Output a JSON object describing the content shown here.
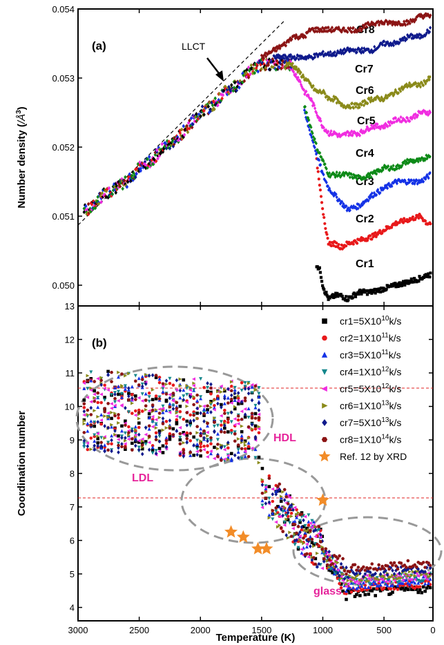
{
  "chart_data": [
    {
      "panel": "(a)",
      "type": "scatter",
      "xlabel": "",
      "ylabel": "Number density ( /Å³)",
      "xlim": [
        3000,
        100
      ],
      "ylim": [
        0.0497,
        0.054
      ],
      "yticks": [
        "0.050",
        "0.051",
        "0.052",
        "0.053",
        "0.054"
      ],
      "annotation": "LLCT",
      "series": [
        {
          "name": "Cr1",
          "color": "#000000",
          "x": [
            1050,
            1020,
            1000,
            980,
            950,
            900,
            850,
            800,
            750,
            700,
            600,
            500,
            400,
            300,
            200,
            150,
            120
          ],
          "y": [
            0.0503,
            0.0502,
            0.05,
            0.0499,
            0.0498,
            0.04985,
            0.04985,
            0.0498,
            0.04985,
            0.0499,
            0.0499,
            0.04995,
            0.05,
            0.05005,
            0.0501,
            0.05015,
            0.05015
          ]
        },
        {
          "name": "Cr2",
          "color": "#e8191b",
          "x": [
            1050,
            1020,
            1000,
            980,
            950,
            900,
            850,
            800,
            700,
            600,
            500,
            400,
            300,
            200,
            150,
            120
          ],
          "y": [
            0.0518,
            0.0514,
            0.0511,
            0.0508,
            0.0506,
            0.0506,
            0.05055,
            0.0506,
            0.05065,
            0.0507,
            0.0508,
            0.0509,
            0.05095,
            0.051,
            0.0509,
            0.0509
          ]
        },
        {
          "name": "Cr3",
          "color": "#1432e6",
          "x": [
            1150,
            1100,
            1050,
            1000,
            950,
            900,
            850,
            800,
            700,
            600,
            500,
            400,
            300,
            200,
            120
          ],
          "y": [
            0.0525,
            0.0522,
            0.0519,
            0.0516,
            0.0514,
            0.0513,
            0.0512,
            0.0511,
            0.05115,
            0.0513,
            0.0514,
            0.0515,
            0.0515,
            0.0515,
            0.0516
          ]
        },
        {
          "name": "Cr4",
          "color": "#0d8a17",
          "x": [
            1150,
            1100,
            1050,
            1000,
            950,
            900,
            850,
            800,
            700,
            600,
            500,
            400,
            300,
            200,
            120
          ],
          "y": [
            0.0526,
            0.0523,
            0.052,
            0.0518,
            0.0516,
            0.0516,
            0.0516,
            0.0516,
            0.05155,
            0.0516,
            0.0517,
            0.0517,
            0.0518,
            0.0518,
            0.0519
          ]
        },
        {
          "name": "Cr5",
          "color": "#f02ce0",
          "x": [
            1250,
            1200,
            1150,
            1100,
            1050,
            1000,
            950,
            900,
            850,
            800,
            700,
            600,
            500,
            400,
            300,
            200,
            120
          ],
          "y": [
            0.0531,
            0.053,
            0.0528,
            0.0527,
            0.0525,
            0.0523,
            0.0522,
            0.0522,
            0.05215,
            0.0522,
            0.0522,
            0.0523,
            0.0523,
            0.0524,
            0.0524,
            0.0525,
            0.0525
          ]
        },
        {
          "name": "Cr6",
          "color": "#8a8a1a",
          "x": [
            1300,
            1250,
            1200,
            1150,
            1100,
            1050,
            1000,
            950,
            900,
            850,
            800,
            700,
            600,
            500,
            400,
            300,
            200,
            120
          ],
          "y": [
            0.0532,
            0.0532,
            0.0531,
            0.053,
            0.0529,
            0.0528,
            0.0528,
            0.0527,
            0.0527,
            0.0526,
            0.0526,
            0.0526,
            0.0527,
            0.0527,
            0.0528,
            0.0529,
            0.0529,
            0.053
          ]
        },
        {
          "name": "Cr7",
          "color": "#0f1a8c",
          "x": [
            1400,
            1300,
            1200,
            1100,
            1000,
            900,
            800,
            700,
            600,
            500,
            400,
            300,
            200,
            120
          ],
          "y": [
            0.0533,
            0.0533,
            0.0533,
            0.0533,
            0.05335,
            0.05335,
            0.0534,
            0.0534,
            0.0534,
            0.0535,
            0.0535,
            0.0536,
            0.0536,
            0.0537
          ]
        },
        {
          "name": "Cr8",
          "color": "#8b1414",
          "x": [
            1500,
            1400,
            1300,
            1250,
            1200,
            1150,
            1100,
            1000,
            900,
            800,
            700,
            600,
            500,
            400,
            300,
            200,
            120
          ],
          "y": [
            0.0533,
            0.0534,
            0.0535,
            0.0536,
            0.0536,
            0.0536,
            0.0537,
            0.0537,
            0.0537,
            0.0537,
            0.0537,
            0.0538,
            0.0538,
            0.0538,
            0.0538,
            0.0539,
            0.0539
          ]
        },
        {
          "name": "shared",
          "color": "#555555",
          "x": [
            2950,
            2900,
            2850,
            2800,
            2700,
            2600,
            2500,
            2400,
            2300,
            2200,
            2100,
            2000,
            1900,
            1800,
            1700,
            1600,
            1500,
            1400,
            1300,
            1250
          ],
          "y": [
            0.0511,
            0.0511,
            0.0512,
            0.0513,
            0.0514,
            0.0515,
            0.0517,
            0.0518,
            0.052,
            0.0521,
            0.0523,
            0.0525,
            0.0526,
            0.0528,
            0.0529,
            0.0531,
            0.0532,
            0.0532,
            0.0532,
            0.0532
          ]
        }
      ]
    },
    {
      "panel": "(b)",
      "type": "scatter",
      "xlabel": "Temperature (K)",
      "ylabel": "Coordination number",
      "xlim": [
        3000,
        100
      ],
      "ylim": [
        3.6,
        13
      ],
      "xticks": [
        "3000",
        "2500",
        "2000",
        "1500",
        "1000",
        "500",
        "0"
      ],
      "yticks": [
        "4",
        "5",
        "6",
        "7",
        "8",
        "9",
        "10",
        "11",
        "12",
        "13"
      ],
      "region_labels": [
        "HDL",
        "LDL",
        "glass"
      ],
      "series": [
        {
          "name": "cr1=5X10^10k/s",
          "color": "#000000",
          "marker": "square"
        },
        {
          "name": "cr2=1X10^11k/s",
          "color": "#e8191b",
          "marker": "circle"
        },
        {
          "name": "cr3=5X10^11k/s",
          "color": "#1432e6",
          "marker": "triangle-up"
        },
        {
          "name": "cr4=1X10^12k/s",
          "color": "#13878c",
          "marker": "triangle-down"
        },
        {
          "name": "cr5=5X10^12k/s",
          "color": "#f02ce0",
          "marker": "triangle-left"
        },
        {
          "name": "cr6=1X10^13k/s",
          "color": "#8a8a1a",
          "marker": "triangle-right"
        },
        {
          "name": "cr7=5X10^13k/s",
          "color": "#0f1a8c",
          "marker": "diamond"
        },
        {
          "name": "cr8=1X10^14k/s",
          "color": "#8b1414",
          "marker": "hexagon"
        }
      ],
      "reference": {
        "name": "Ref. 12 by XRD",
        "color": "#f28c28",
        "marker": "star",
        "x": [
          1000,
          1750,
          1650,
          1530,
          1460
        ],
        "y": [
          7.2,
          6.25,
          6.1,
          5.75,
          5.75
        ]
      }
    }
  ],
  "legend": {
    "entries": [
      {
        "prefix": "cr1=5X10",
        "exp": "10",
        "suffix": "k/s",
        "color": "#000000",
        "marker": "square"
      },
      {
        "prefix": "cr2=1X10",
        "exp": "11",
        "suffix": "k/s",
        "color": "#e8191b",
        "marker": "circle"
      },
      {
        "prefix": "cr3=5X10",
        "exp": "11",
        "suffix": "k/s",
        "color": "#1432e6",
        "marker": "triangle-up"
      },
      {
        "prefix": "cr4=1X10",
        "exp": "12",
        "suffix": "k/s",
        "color": "#13878c",
        "marker": "triangle-down"
      },
      {
        "prefix": "cr5=5X10",
        "exp": "12",
        "suffix": "k/s",
        "color": "#f02ce0",
        "marker": "triangle-left"
      },
      {
        "prefix": "cr6=1X10",
        "exp": "13",
        "suffix": "k/s",
        "color": "#8a8a1a",
        "marker": "triangle-right"
      },
      {
        "prefix": "cr7=5X10",
        "exp": "13",
        "suffix": "k/s",
        "color": "#0f1a8c",
        "marker": "diamond"
      },
      {
        "prefix": "cr8=1X10",
        "exp": "14",
        "suffix": "k/s",
        "color": "#8b1414",
        "marker": "hexagon"
      }
    ],
    "ref_label": "Ref. 12 by XRD"
  },
  "labels": {
    "panel_a": "(a)",
    "panel_b": "(b)",
    "llct": "LLCT",
    "ylabel_a_main": "Number density (",
    "ylabel_a_unit": "/Å",
    "ylabel_a_exp": "3",
    "ylabel_a_close": ")",
    "ylabel_b": "Coordination number",
    "xlabel": "Temperature (K)",
    "hdl": "HDL",
    "ldl": "LDL",
    "glass": "glass",
    "curve_names": [
      "Cr8",
      "Cr7",
      "Cr6",
      "Cr5",
      "Cr4",
      "Cr3",
      "Cr2",
      "Cr1"
    ]
  }
}
